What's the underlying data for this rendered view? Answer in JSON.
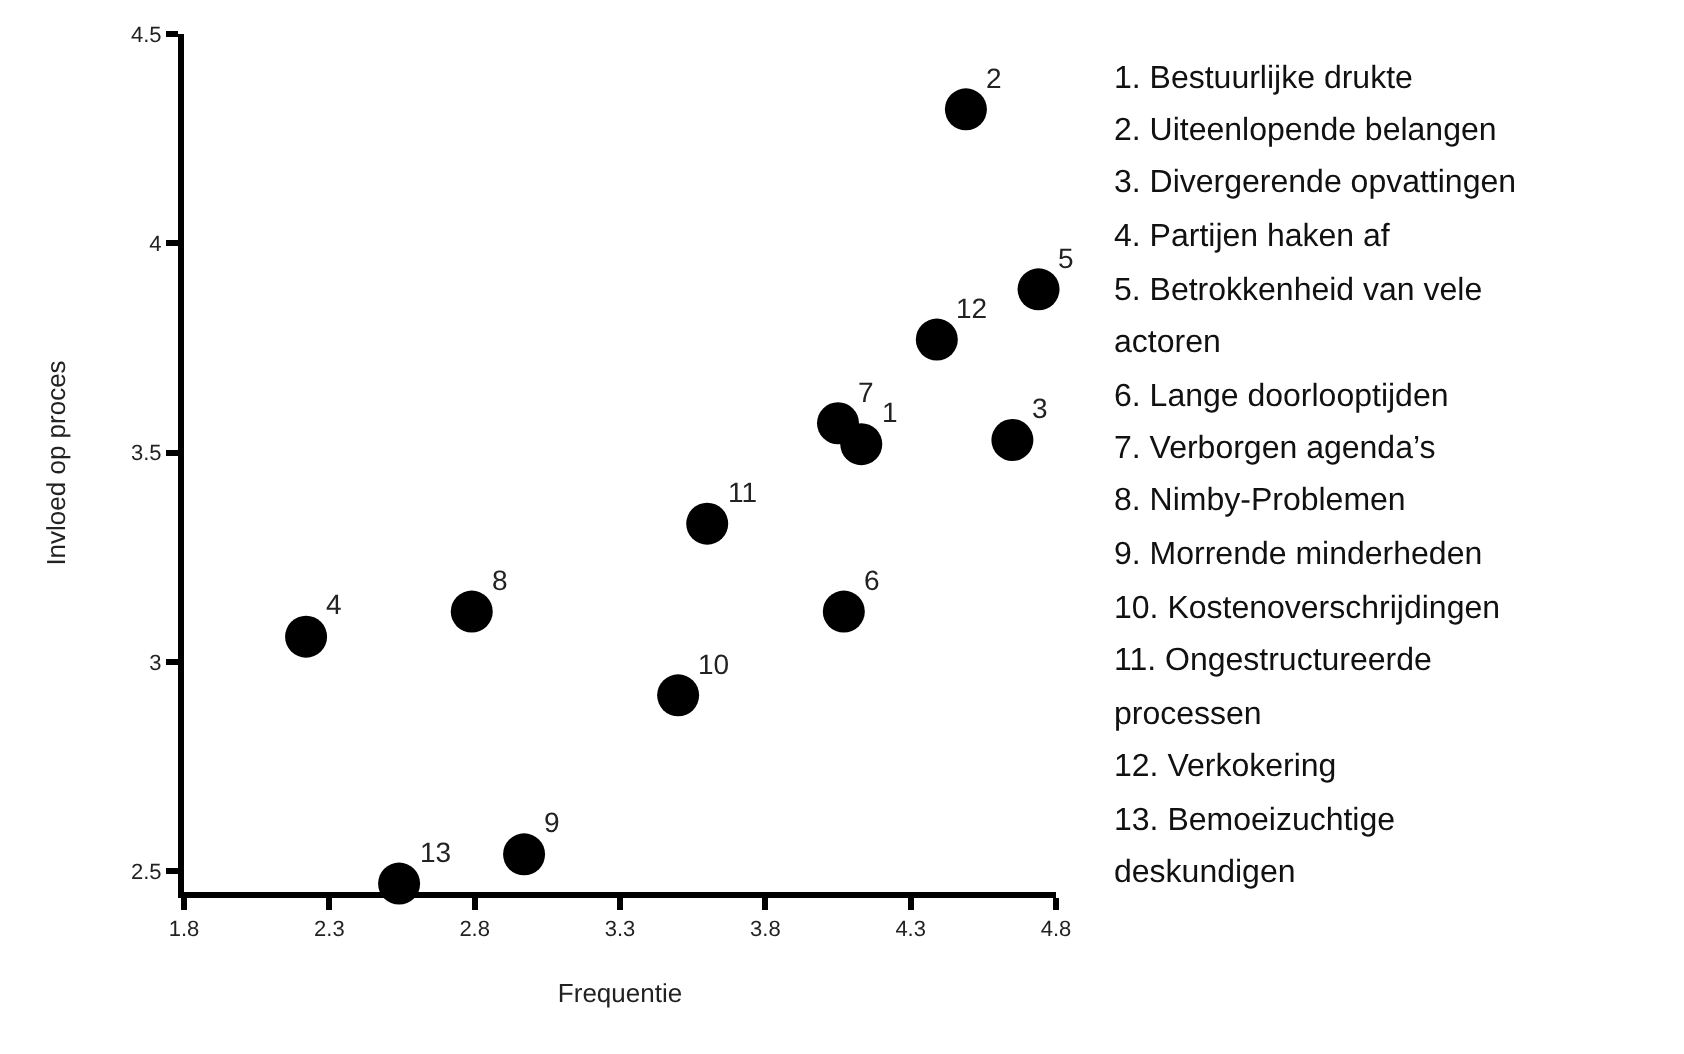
{
  "chart_data": {
    "type": "scatter",
    "xlabel": "Frequentie",
    "ylabel": "Invloed op proces",
    "x": [
      4.13,
      4.49,
      4.65,
      2.22,
      4.74,
      4.07,
      4.05,
      2.79,
      2.97,
      3.5,
      3.6,
      4.39,
      2.54
    ],
    "series": [
      {
        "color": "#000000",
        "values": [
          3.52,
          4.32,
          3.53,
          3.06,
          3.89,
          3.12,
          3.57,
          3.12,
          2.54,
          2.92,
          3.33,
          3.77,
          2.47
        ]
      }
    ],
    "marker": "circle",
    "xlim": [
      1.8,
      4.8
    ],
    "xticks": [
      1.8,
      2.3,
      2.8,
      3.3,
      3.8,
      4.3,
      4.8
    ],
    "ylim": [
      2.45,
      4.5
    ],
    "yticks": [
      2.5,
      3,
      3.5,
      4,
      4.5
    ],
    "annotations": [
      {
        "text": "1",
        "x": 4.13,
        "y": 3.52
      },
      {
        "text": "2",
        "x": 4.49,
        "y": 4.32
      },
      {
        "text": "3",
        "x": 4.65,
        "y": 3.53
      },
      {
        "text": "4",
        "x": 2.22,
        "y": 3.06
      },
      {
        "text": "5",
        "x": 4.74,
        "y": 3.89
      },
      {
        "text": "6",
        "x": 4.07,
        "y": 3.12
      },
      {
        "text": "7",
        "x": 4.05,
        "y": 3.57
      },
      {
        "text": "8",
        "x": 2.79,
        "y": 3.12
      },
      {
        "text": "9",
        "x": 2.97,
        "y": 2.54
      },
      {
        "text": "10",
        "x": 3.5,
        "y": 2.92
      },
      {
        "text": "11",
        "x": 3.6,
        "y": 3.33
      },
      {
        "text": "12",
        "x": 4.39,
        "y": 3.77
      },
      {
        "text": "13",
        "x": 2.54,
        "y": 2.47
      },
      "1. Bestuurlijke drukte",
      "2. Uiteenlopende belangen",
      "3. Divergerende opvattingen",
      "4. Partijen haken af",
      "5. Betrokkenheid van vele actoren",
      "6. Lange doorlooptijden",
      "7. Verborgen agenda’s",
      "8. Nimby-Problemen",
      "9. Morrende minderheden",
      "10. Kostenoverschrijdingen",
      "11. Ongestructureerde processen",
      "12. Verkokering",
      "13. Bemoeizuchtige deskundigen"
    ]
  }
}
